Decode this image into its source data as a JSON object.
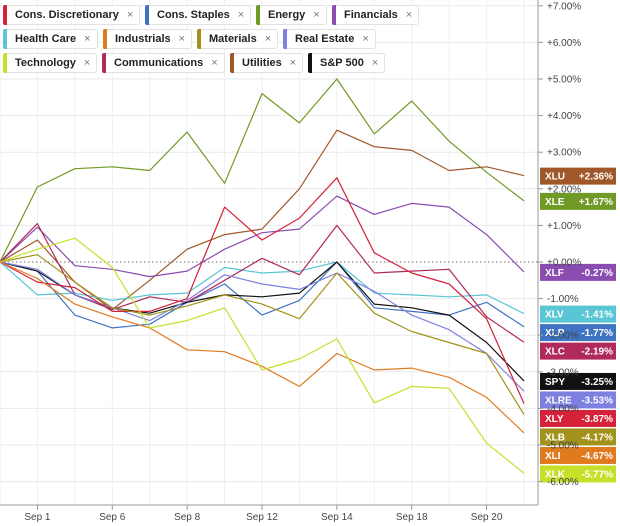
{
  "legend": [
    {
      "key": "xly",
      "label": "Cons. Discretionary",
      "color": "#d6213a"
    },
    {
      "key": "xlp",
      "label": "Cons. Staples",
      "color": "#3f74c2"
    },
    {
      "key": "xle",
      "label": "Energy",
      "color": "#6f9a25"
    },
    {
      "key": "xlf",
      "label": "Financials",
      "color": "#8a4cb0"
    },
    {
      "key": "xlv",
      "label": "Health Care",
      "color": "#58c6d4"
    },
    {
      "key": "xli",
      "label": "Industrials",
      "color": "#e07a1f"
    },
    {
      "key": "xlb",
      "label": "Materials",
      "color": "#a3921a"
    },
    {
      "key": "xlre",
      "label": "Real Estate",
      "color": "#7d80e0"
    },
    {
      "key": "xlk",
      "label": "Technology",
      "color": "#c6e02a"
    },
    {
      "key": "xlc",
      "label": "Communications",
      "color": "#b02a5e"
    },
    {
      "key": "xlu",
      "label": "Utilities",
      "color": "#a0582a"
    },
    {
      "key": "spy",
      "label": "S&P 500",
      "color": "#111111"
    }
  ],
  "close_symbol": "×",
  "chart_data": {
    "type": "line",
    "title": "",
    "xlabel": "",
    "ylabel": "",
    "ylim": [
      -6.5,
      7.0
    ],
    "y_ticks": [
      7,
      6,
      5,
      4,
      3,
      2,
      1,
      0,
      -1,
      -2,
      -3,
      -4,
      -5,
      -6
    ],
    "y_tick_labels": [
      "+7.00%",
      "+6.00%",
      "+5.00%",
      "+4.00%",
      "+3.00%",
      "+2.00%",
      "+1.00%",
      "+0.00%",
      "-1.00%",
      "-2.00%",
      "-3.00%",
      "-4.00%",
      "-5.00%",
      "-6.00%"
    ],
    "x_tick_labels": [
      {
        "i": 1,
        "label": "Sep 1"
      },
      {
        "i": 3,
        "label": "Sep 6"
      },
      {
        "i": 5,
        "label": "Sep 8"
      },
      {
        "i": 7,
        "label": "Sep 12"
      },
      {
        "i": 9,
        "label": "Sep 14"
      },
      {
        "i": 11,
        "label": "Sep 18"
      },
      {
        "i": 13,
        "label": "Sep 20"
      }
    ],
    "n_points": 15,
    "series": [
      {
        "key": "xle",
        "name": "XLE",
        "color": "#6f9a25",
        "label": "+1.67%",
        "values": [
          0,
          2.05,
          2.55,
          2.6,
          2.5,
          3.55,
          2.15,
          4.6,
          3.8,
          5.0,
          3.5,
          4.4,
          3.3,
          2.45,
          1.67
        ]
      },
      {
        "key": "xlu",
        "name": "XLU",
        "color": "#a0582a",
        "label": "+2.36%",
        "values": [
          0,
          0.6,
          -0.55,
          -1.3,
          -0.5,
          0.35,
          0.75,
          0.9,
          2.0,
          3.6,
          3.15,
          3.05,
          2.5,
          2.6,
          2.36
        ]
      },
      {
        "key": "xlf",
        "name": "XLF",
        "color": "#8a4cb0",
        "label": "-0.27%",
        "values": [
          0,
          0.95,
          -0.1,
          -0.2,
          -0.4,
          -0.25,
          0.35,
          0.8,
          0.9,
          1.8,
          1.3,
          1.6,
          1.5,
          0.75,
          -0.27
        ]
      },
      {
        "key": "xlv",
        "name": "XLV",
        "color": "#58c6d4",
        "label": "-1.41%",
        "values": [
          0,
          -0.9,
          -0.85,
          -1.05,
          -0.9,
          -0.85,
          -0.15,
          -0.3,
          -0.25,
          0.0,
          -0.85,
          -0.9,
          -0.95,
          -0.9,
          -1.41
        ]
      },
      {
        "key": "xlp",
        "name": "XLP",
        "color": "#3f74c2",
        "label": "-1.77%",
        "values": [
          0,
          -0.25,
          -1.45,
          -1.8,
          -1.7,
          -1.1,
          -0.6,
          -1.45,
          -1.05,
          0.0,
          -1.25,
          -1.35,
          -1.45,
          -1.1,
          -1.77
        ]
      },
      {
        "key": "xlc",
        "name": "XLC",
        "color": "#b02a5e",
        "label": "-2.19%",
        "values": [
          0,
          1.05,
          -0.9,
          -1.3,
          -0.95,
          -1.1,
          -0.5,
          0.1,
          -0.35,
          1.0,
          -0.3,
          -0.25,
          -0.2,
          -1.5,
          -2.19
        ]
      },
      {
        "key": "spy",
        "name": "SPY",
        "color": "#111111",
        "label": "-3.25%",
        "values": [
          0,
          -0.25,
          -0.9,
          -1.25,
          -1.4,
          -1.1,
          -0.9,
          -0.95,
          -0.85,
          0.0,
          -1.15,
          -1.25,
          -1.45,
          -2.2,
          -3.25
        ]
      },
      {
        "key": "xlre",
        "name": "XLRE",
        "color": "#7d80e0",
        "label": "-3.53%",
        "values": [
          0,
          -0.2,
          -0.9,
          -1.25,
          -1.6,
          -1.05,
          -0.35,
          -0.6,
          -0.75,
          -0.3,
          -0.8,
          -1.45,
          -1.85,
          -2.5,
          -3.53
        ]
      },
      {
        "key": "xly",
        "name": "XLY",
        "color": "#d6213a",
        "label": "-3.87%",
        "values": [
          0,
          -0.55,
          -0.7,
          -1.35,
          -1.35,
          -1.0,
          1.5,
          0.6,
          1.2,
          2.3,
          0.25,
          -0.3,
          -0.6,
          -1.55,
          -3.87
        ]
      },
      {
        "key": "xlb",
        "name": "XLB",
        "color": "#a3921a",
        "label": "-4.17%",
        "values": [
          0,
          0.2,
          -0.55,
          -1.25,
          -1.45,
          -1.2,
          -0.9,
          -1.15,
          -1.55,
          -0.3,
          -1.4,
          -1.9,
          -2.2,
          -2.5,
          -4.17
        ]
      },
      {
        "key": "xli",
        "name": "XLI",
        "color": "#e07a1f",
        "label": "-4.67%",
        "values": [
          0,
          -0.45,
          -1.15,
          -1.5,
          -1.8,
          -2.4,
          -2.45,
          -2.85,
          -3.4,
          -2.5,
          -2.95,
          -2.9,
          -3.15,
          -3.7,
          -4.67
        ]
      },
      {
        "key": "xlk",
        "name": "XLK",
        "color": "#c6e02a",
        "label": "-5.77%",
        "values": [
          0,
          0.35,
          0.65,
          -0.15,
          -1.8,
          -1.6,
          -1.25,
          -2.95,
          -2.65,
          -2.1,
          -3.85,
          -3.4,
          -3.45,
          -4.95,
          -5.77
        ]
      }
    ]
  }
}
